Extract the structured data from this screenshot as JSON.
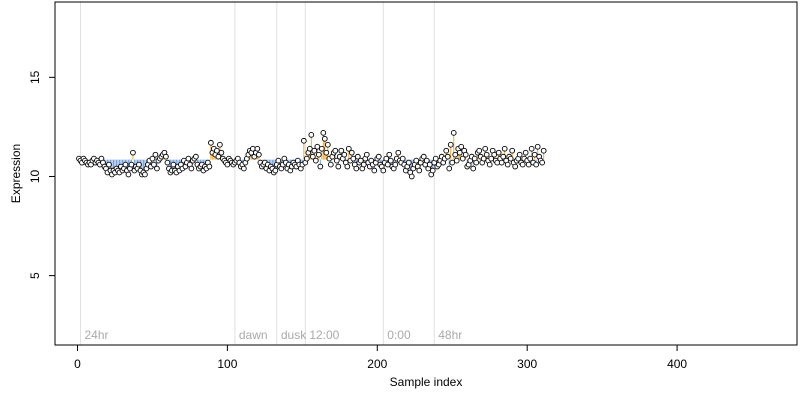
{
  "chart_data": {
    "type": "scatter",
    "title": "",
    "xlabel": "Sample index",
    "ylabel": "Expression",
    "xlim": [
      -15,
      480
    ],
    "ylim": [
      1.5,
      18.8
    ],
    "baseline": 10.85,
    "x_ticks": [
      0,
      100,
      200,
      300,
      400
    ],
    "y_ticks": [
      5,
      10,
      15
    ],
    "markers": [
      {
        "x": 2,
        "label": "24hr"
      },
      {
        "x": 105,
        "label": "dawn"
      },
      {
        "x": 133,
        "label": "dusk"
      },
      {
        "x": 152,
        "label": "12:00"
      },
      {
        "x": 204,
        "label": "0:00"
      },
      {
        "x": 238,
        "label": "48hr"
      }
    ],
    "colors": {
      "above": "#f5a623",
      "below": "#6f9ee0",
      "marker_line": "#e0e0e0",
      "marker_text": "#aaaaaa",
      "point_fill": "#ffffff",
      "point_stroke": "#000000"
    },
    "grid": false,
    "legend": "none",
    "y": [
      10.9,
      10.8,
      10.7,
      10.9,
      10.8,
      10.7,
      10.6,
      10.7,
      10.6,
      10.8,
      10.9,
      10.7,
      10.8,
      10.7,
      10.6,
      10.9,
      10.7,
      10.5,
      10.4,
      10.2,
      10.6,
      10.3,
      10.1,
      10.3,
      10.2,
      10.4,
      10.3,
      10.2,
      10.5,
      10.3,
      10.4,
      10.6,
      10.3,
      10.1,
      10.4,
      10.6,
      11.2,
      10.3,
      10.5,
      10.4,
      10.6,
      10.3,
      10.1,
      10.2,
      10.1,
      10.4,
      10.6,
      10.8,
      10.5,
      10.9,
      10.6,
      11.1,
      10.4,
      10.8,
      10.9,
      11.0,
      11.1,
      11.2,
      11.0,
      10.7,
      10.4,
      10.2,
      10.3,
      10.6,
      10.3,
      10.2,
      10.5,
      10.3,
      10.6,
      10.4,
      10.8,
      10.5,
      10.7,
      10.9,
      10.6,
      10.4,
      10.8,
      10.9,
      11.0,
      10.6,
      10.4,
      10.5,
      10.6,
      10.3,
      10.5,
      10.4,
      10.7,
      10.5,
      11.7,
      11.2,
      11.4,
      11.1,
      11.3,
      11.0,
      11.6,
      11.2,
      10.9,
      10.8,
      10.7,
      10.6,
      10.9,
      10.8,
      10.7,
      10.6,
      10.7,
      10.8,
      10.9,
      10.7,
      10.5,
      10.6,
      10.4,
      10.7,
      10.9,
      11.1,
      11.3,
      11.2,
      11.4,
      11.0,
      11.2,
      11.4,
      11.1,
      10.7,
      10.5,
      10.6,
      10.7,
      10.4,
      10.6,
      10.3,
      10.5,
      10.4,
      10.2,
      10.3,
      10.6,
      10.8,
      10.5,
      10.4,
      10.6,
      10.9,
      10.7,
      10.4,
      10.6,
      10.3,
      10.5,
      10.7,
      10.6,
      10.5,
      10.8,
      10.6,
      10.4,
      10.6,
      11.8,
      10.7,
      10.9,
      11.2,
      11.4,
      12.1,
      11.0,
      11.3,
      10.8,
      11.5,
      11.1,
      10.5,
      11.4,
      12.2,
      11.9,
      11.2,
      11.6,
      10.9,
      10.6,
      11.0,
      11.2,
      11.3,
      10.8,
      10.5,
      11.0,
      11.3,
      10.9,
      11.1,
      10.7,
      10.5,
      11.4,
      10.8,
      11.2,
      10.9,
      10.6,
      10.4,
      11.0,
      10.7,
      10.8,
      10.4,
      10.6,
      10.9,
      11.1,
      10.7,
      10.5,
      10.8,
      10.6,
      10.3,
      10.7,
      10.9,
      11.0,
      10.6,
      10.5,
      10.3,
      10.7,
      10.9,
      10.6,
      11.1,
      10.8,
      10.5,
      10.4,
      10.6,
      10.9,
      11.2,
      10.8,
      10.7,
      10.9,
      10.6,
      10.3,
      10.5,
      10.7,
      10.2,
      10.0,
      10.4,
      10.6,
      10.8,
      10.5,
      10.3,
      10.7,
      10.9,
      11.0,
      10.6,
      10.8,
      10.4,
      10.6,
      10.1,
      10.3,
      10.7,
      10.9,
      10.5,
      10.6,
      10.8,
      11.0,
      10.7,
      10.9,
      11.3,
      11.0,
      10.4,
      11.6,
      10.7,
      12.2,
      11.1,
      10.8,
      11.4,
      11.2,
      11.5,
      10.9,
      11.3,
      11.1,
      10.5,
      10.6,
      10.8,
      11.0,
      10.4,
      10.9,
      10.7,
      11.2,
      11.3,
      11.0,
      10.7,
      10.9,
      11.4,
      11.1,
      10.8,
      10.6,
      10.9,
      11.3,
      11.1,
      10.8,
      10.7,
      11.2,
      10.9,
      10.7,
      11.0,
      11.4,
      10.8,
      10.6,
      11.0,
      10.9,
      11.3,
      10.7,
      10.5,
      10.8,
      10.9,
      11.1,
      10.7,
      10.6,
      10.9,
      11.2,
      10.8,
      10.6,
      10.9,
      11.4,
      10.7,
      11.1,
      10.6,
      11.5,
      11.0,
      10.8,
      10.7,
      11.3
    ]
  }
}
